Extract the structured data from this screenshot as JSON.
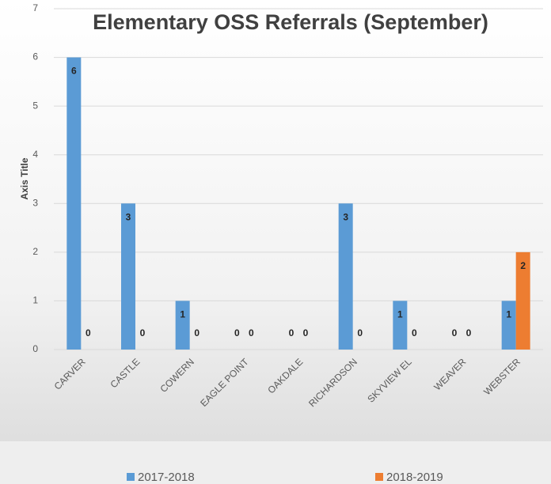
{
  "chart_data": {
    "type": "bar",
    "title": "Elementary OSS Referrals (September)",
    "y_axis_label": "Axis Title",
    "categories": [
      "CARVER",
      "CASTLE",
      "COWERN",
      "EAGLE POINT",
      "OAKDALE",
      "RICHARDSON",
      "SKYVIEW EL",
      "WEAVER",
      "WEBSTER"
    ],
    "series": [
      {
        "name": "2017-2018",
        "color": "#5b9bd5",
        "values": [
          6,
          3,
          1,
          0,
          0,
          3,
          1,
          0,
          1
        ]
      },
      {
        "name": "2018-2019",
        "color": "#ed7d31",
        "values": [
          0,
          0,
          0,
          0,
          0,
          0,
          0,
          0,
          2
        ]
      }
    ],
    "ylim": [
      0,
      7
    ],
    "yticks": [
      0,
      1,
      2,
      3,
      4,
      5,
      6,
      7
    ],
    "grid": true,
    "legend": "bottom"
  }
}
